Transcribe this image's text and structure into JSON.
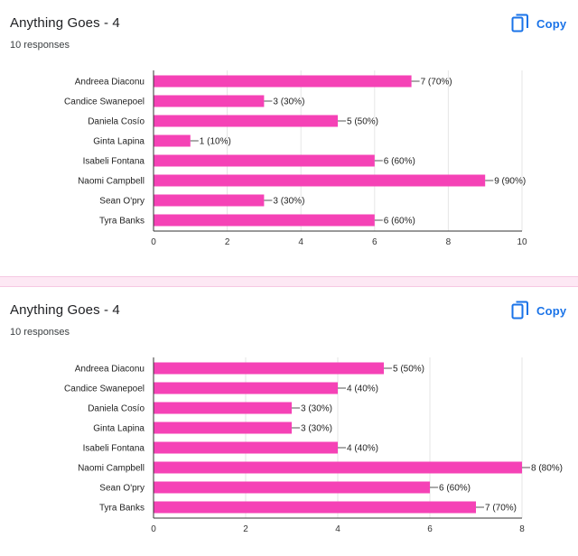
{
  "copy_icon": "copy-icon",
  "accent_color": "#1a73e8",
  "bar_color": "#f542b6",
  "cards": [
    {
      "title": "Anything Goes - 4",
      "responses": "10 responses",
      "copy_label": "Copy"
    },
    {
      "title": "Anything Goes - 4",
      "responses": "10 responses",
      "copy_label": "Copy"
    }
  ],
  "chart_data": [
    {
      "type": "bar",
      "orientation": "horizontal",
      "categories": [
        "Andreea Diaconu",
        "Candice Swanepoel",
        "Daniela Cosío",
        "Ginta Lapina",
        "Isabeli Fontana",
        "Naomi Campbell",
        "Sean O'pry",
        "Tyra Banks"
      ],
      "values": [
        7,
        3,
        5,
        1,
        6,
        9,
        3,
        6
      ],
      "labels": [
        "7 (70%)",
        "3 (30%)",
        "5 (50%)",
        "1 (10%)",
        "6 (60%)",
        "9 (90%)",
        "3 (30%)",
        "6 (60%)"
      ],
      "xlim": [
        0,
        10
      ],
      "ticks": [
        0,
        2,
        4,
        6,
        8,
        10
      ],
      "grid": true
    },
    {
      "type": "bar",
      "orientation": "horizontal",
      "categories": [
        "Andreea Diaconu",
        "Candice Swanepoel",
        "Daniela Cosío",
        "Ginta Lapina",
        "Isabeli Fontana",
        "Naomi Campbell",
        "Sean O'pry",
        "Tyra Banks"
      ],
      "values": [
        5,
        4,
        3,
        3,
        4,
        8,
        6,
        7
      ],
      "labels": [
        "5 (50%)",
        "4 (40%)",
        "3 (30%)",
        "3 (30%)",
        "4 (40%)",
        "8 (80%)",
        "6 (60%)",
        "7 (70%)"
      ],
      "xlim": [
        0,
        8
      ],
      "ticks": [
        0,
        2,
        4,
        6,
        8
      ],
      "grid": true
    }
  ]
}
